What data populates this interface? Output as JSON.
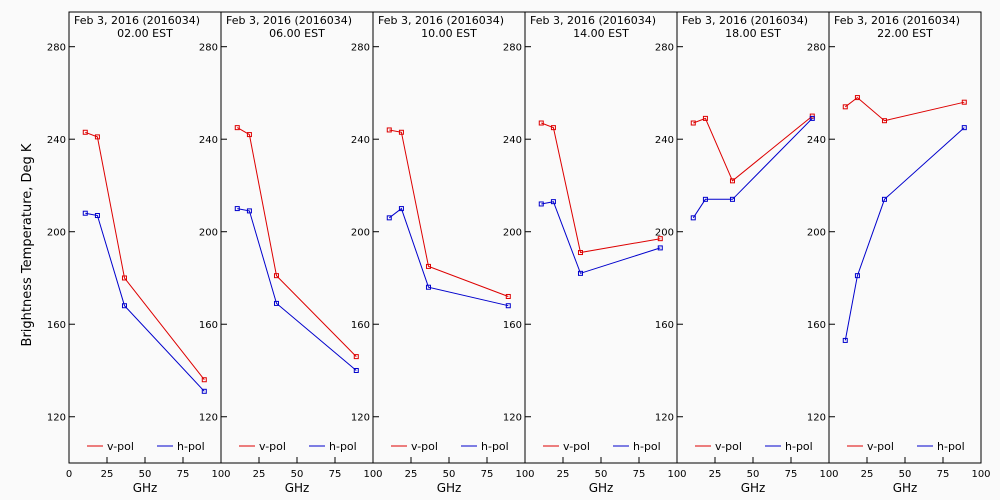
{
  "chart_data": {
    "type": "line",
    "ylabel": "Brightness Temperature, Deg K",
    "xlabel": "GHz",
    "xlim": [
      0,
      100
    ],
    "ylim": [
      100,
      295
    ],
    "xticks": [
      0,
      25,
      50,
      75,
      100
    ],
    "yticks": [
      120,
      160,
      200,
      240,
      280
    ],
    "legend_position": "bottom",
    "colors": {
      "v-pol": "#dd0000",
      "h-pol": "#0000cc"
    },
    "panels": [
      {
        "title_line1": "Feb  3, 2016 (2016034)",
        "title_line2": "02.00 EST",
        "series": [
          {
            "name": "v-pol",
            "x": [
              10.7,
              18.7,
              36.5,
              89.0
            ],
            "y": [
              243,
              241,
              180,
              136
            ]
          },
          {
            "name": "h-pol",
            "x": [
              10.7,
              18.7,
              36.5,
              89.0
            ],
            "y": [
              208,
              207,
              168,
              131
            ]
          }
        ]
      },
      {
        "title_line1": "Feb  3, 2016 (2016034)",
        "title_line2": "06.00 EST",
        "series": [
          {
            "name": "v-pol",
            "x": [
              10.7,
              18.7,
              36.5,
              89.0
            ],
            "y": [
              245,
              242,
              181,
              146
            ]
          },
          {
            "name": "h-pol",
            "x": [
              10.7,
              18.7,
              36.5,
              89.0
            ],
            "y": [
              210,
              209,
              169,
              140
            ]
          }
        ]
      },
      {
        "title_line1": "Feb  3, 2016 (2016034)",
        "title_line2": "10.00 EST",
        "series": [
          {
            "name": "v-pol",
            "x": [
              10.7,
              18.7,
              36.5,
              89.0
            ],
            "y": [
              244,
              243,
              185,
              172
            ]
          },
          {
            "name": "h-pol",
            "x": [
              10.7,
              18.7,
              36.5,
              89.0
            ],
            "y": [
              206,
              210,
              176,
              168
            ]
          }
        ]
      },
      {
        "title_line1": "Feb  3, 2016 (2016034)",
        "title_line2": "14.00 EST",
        "series": [
          {
            "name": "v-pol",
            "x": [
              10.7,
              18.7,
              36.5,
              89.0
            ],
            "y": [
              247,
              245,
              191,
              197
            ]
          },
          {
            "name": "h-pol",
            "x": [
              10.7,
              18.7,
              36.5,
              89.0
            ],
            "y": [
              212,
              213,
              182,
              193
            ]
          }
        ]
      },
      {
        "title_line1": "Feb  3, 2016 (2016034)",
        "title_line2": "18.00 EST",
        "series": [
          {
            "name": "v-pol",
            "x": [
              10.7,
              18.7,
              36.5,
              89.0
            ],
            "y": [
              247,
              249,
              222,
              250
            ]
          },
          {
            "name": "h-pol",
            "x": [
              10.7,
              18.7,
              36.5,
              89.0
            ],
            "y": [
              206,
              214,
              214,
              249
            ]
          }
        ]
      },
      {
        "title_line1": "Feb  3, 2016 (2016034)",
        "title_line2": "22.00 EST",
        "series": [
          {
            "name": "v-pol",
            "x": [
              10.7,
              18.7,
              36.5,
              89.0
            ],
            "y": [
              254,
              258,
              248,
              256
            ]
          },
          {
            "name": "h-pol",
            "x": [
              10.7,
              18.7,
              36.5,
              89.0
            ],
            "y": [
              153,
              181,
              214,
              245
            ]
          }
        ]
      }
    ]
  }
}
